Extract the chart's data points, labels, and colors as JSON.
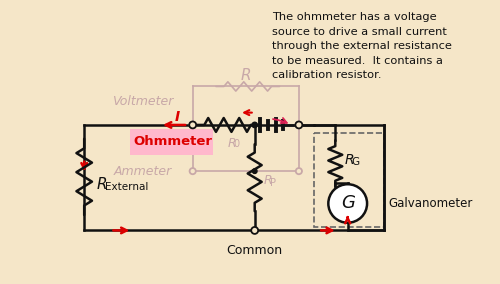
{
  "bg_color": "#f5e6c8",
  "cc": "#111111",
  "rc": "#dd0000",
  "vc": "#c8a8a8",
  "ohm_fill": "#ffb8cc",
  "galv_edge": "#666666",
  "ann_fill": "#f9b8c8",
  "ann_edge": "#dd2255",
  "ann_text": "The ohmmeter has a voltage\nsource to drive a small current\nthrough the external resistance\nto be measured.  It contains a\ncalibration resistor.",
  "voltmeter_text": "Voltmeter",
  "ohmmeter_text": "Ohmmeter",
  "ammeter_text": "Ammeter",
  "common_text": "Common",
  "galvanometer_text": "Galvanometer",
  "g_text": "G",
  "i_text": "I",
  "R_text": "R",
  "R0_text": "R",
  "R0_sub": "0",
  "RP_text": "R",
  "RP_sub": "P",
  "RG_text": "R",
  "RG_sub": "G",
  "Rext_text": "R",
  "Rext_sub": "External",
  "lw": 1.8,
  "lw_gray": 1.2
}
